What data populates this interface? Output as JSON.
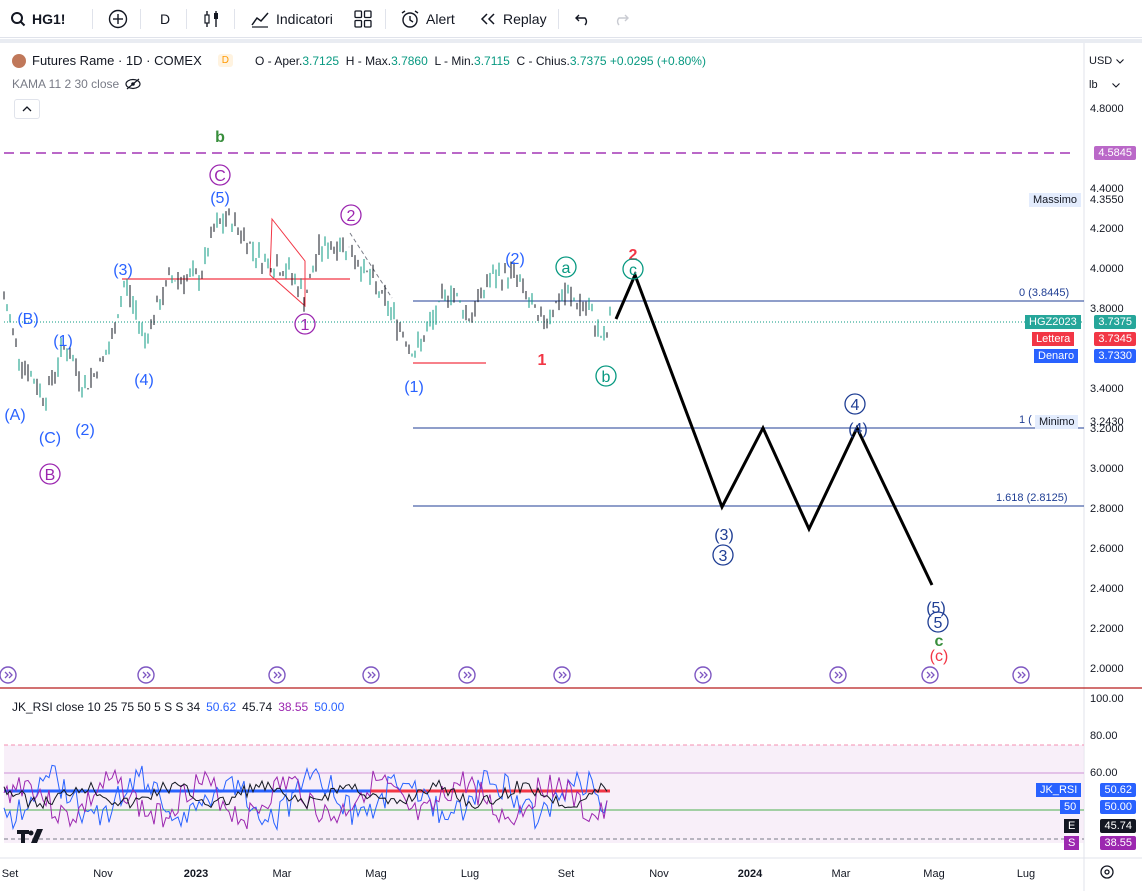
{
  "toolbar": {
    "symbol": "HG1!",
    "interval": "D",
    "indicators_label": "Indicatori",
    "alert_label": "Alert",
    "replay_label": "Replay"
  },
  "legend": {
    "title": "Futures Rame · 1D · COMEX",
    "badge": "D",
    "o_label": "O - Aper.",
    "o": "3.7125",
    "h_label": "H - Max.",
    "h": "3.7860",
    "l_label": "L - Min.",
    "l": "3.7115",
    "c_label": "C - Chius.",
    "c": "3.7375",
    "change": "+0.0295 (+0.80%)",
    "kama": "KAMA 11 2 30 close"
  },
  "scale": {
    "currency": "USD",
    "unit": "lb",
    "ticks": [
      "4.8000",
      "4.4000",
      "4.2000",
      "4.0000",
      "3.8000",
      "3.4000",
      "3.2000",
      "3.0000",
      "2.8000",
      "2.6000",
      "2.4000",
      "2.2000",
      "2.0000"
    ]
  },
  "price_labels": {
    "target": "4.5845",
    "massimo_label": "Massimo",
    "massimo": "4.3550",
    "symbol_label": "HGZ2023",
    "symbol_price": "3.7375",
    "lettera_label": "Lettera",
    "lettera": "3.7345",
    "denaro_label": "Denaro",
    "denaro": "3.7330",
    "minimo_label": "Minimo",
    "minimo": "3.2430"
  },
  "fib": {
    "level_0": "0 (3.8445)",
    "level_1": "1 (",
    "level_1618": "1.618 (2.8125)"
  },
  "waves": {
    "b_green": "b",
    "C_circ": "C",
    "five": "(5)",
    "three": "(3)",
    "two_circ": "2",
    "B_paren": "(B)",
    "one_paren": "(1)",
    "A_paren": "(A)",
    "C_paren": "(C)",
    "two_paren": "(2)",
    "four_paren": "(4)",
    "B_circ": "B",
    "one_circ": "1",
    "one_p2": "(1)",
    "two_p2": "(2)",
    "a_circ": "a",
    "one_red": "1",
    "b_circ": "b",
    "two_red": "2",
    "c_circ": "c",
    "three_p2": "(3)",
    "three_circ": "3",
    "four_circ": "4",
    "four_p2": "(4)",
    "five_p2": "(5)",
    "five_circ": "5",
    "c_green": "c",
    "c_red": "(c)"
  },
  "rsi": {
    "label": "JK_RSI close 10 25 75 50 5 S S 34",
    "v1": "50.62",
    "v2": "45.74",
    "v3": "38.55",
    "v4": "50.00",
    "ticks": [
      "100.00",
      "80.00",
      "60.00"
    ],
    "tag_name": "JK_RSI",
    "tag_val": "50.62",
    "tag50_name": "50",
    "tag50_val": "50.00",
    "tagE_name": "E",
    "tagE_val": "45.74",
    "tagS_name": "S",
    "tagS_val": "38.55"
  },
  "time_axis": [
    "Set",
    "Nov",
    "2023",
    "Mar",
    "Mag",
    "Lug",
    "Set",
    "Nov",
    "2024",
    "Mar",
    "Mag",
    "Lug"
  ],
  "colors": {
    "blue": "#2962ff",
    "purple": "#9c27b0",
    "teal": "#089981",
    "red": "#f23645",
    "navy": "#1f3e94",
    "green": "#388e3c"
  },
  "chart_data": {
    "type": "candlestick",
    "projection_path": [
      3.78,
      3.97,
      2.81,
      3.2,
      2.69,
      3.2,
      2.42
    ],
    "fib_levels": [
      3.8445,
      3.243,
      2.8125
    ],
    "target_level": 4.5845,
    "rsi_levels": [
      75,
      60,
      50,
      38.55
    ]
  }
}
